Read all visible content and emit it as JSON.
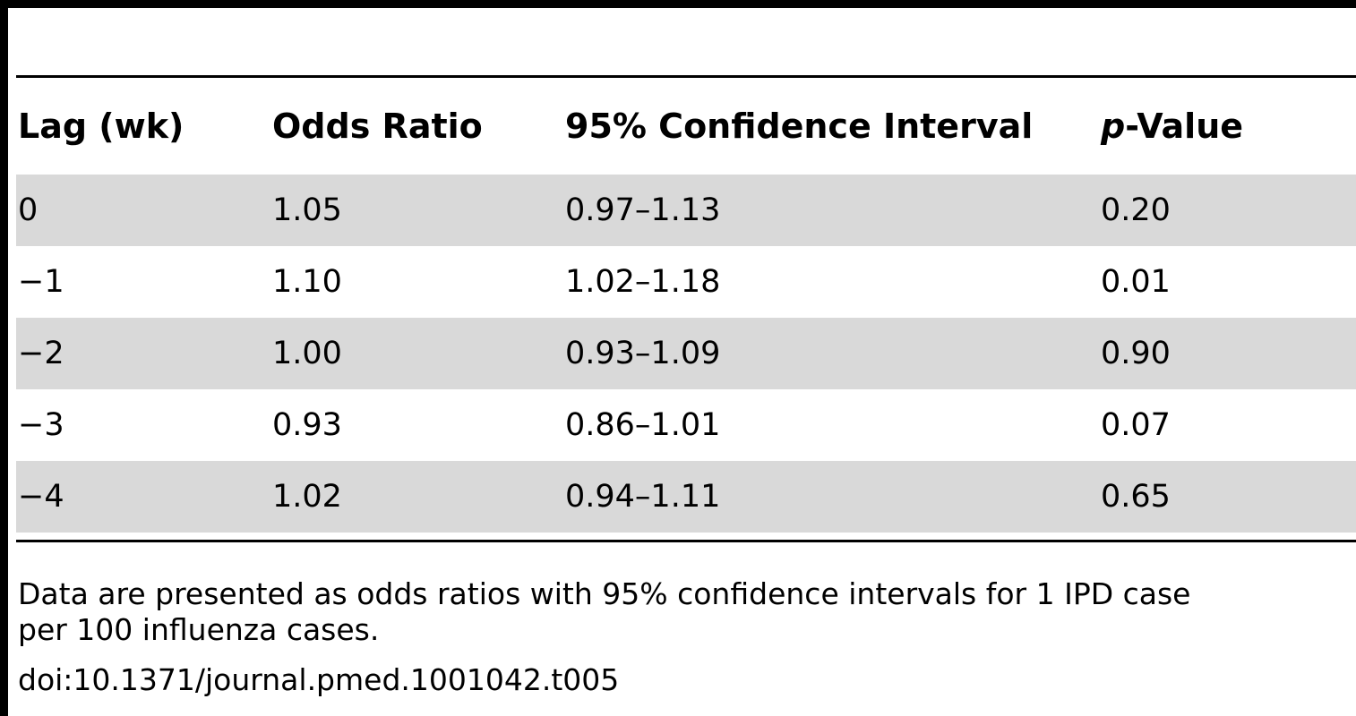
{
  "table": {
    "headers": {
      "lag": "Lag (wk)",
      "odds_ratio": "Odds Ratio",
      "ci": "95% Confidence Interval",
      "p_italic": "p",
      "p_rest": "-Value"
    },
    "rows": [
      {
        "lag": "0",
        "odds_ratio": "1.05",
        "ci": "0.97–1.13",
        "p": "0.20"
      },
      {
        "lag": "−1",
        "odds_ratio": "1.10",
        "ci": "1.02–1.18",
        "p": "0.01"
      },
      {
        "lag": "−2",
        "odds_ratio": "1.00",
        "ci": "0.93–1.09",
        "p": "0.90"
      },
      {
        "lag": "−3",
        "odds_ratio": "0.93",
        "ci": "0.86–1.01",
        "p": "0.07"
      },
      {
        "lag": "−4",
        "odds_ratio": "1.02",
        "ci": "0.94–1.11",
        "p": "0.65"
      }
    ]
  },
  "footnote": {
    "line1": "Data are presented as odds ratios with 95% confidence intervals for 1 IPD case",
    "line2": "per 100 influenza cases."
  },
  "doi": "doi:10.1371/journal.pmed.1001042.t005",
  "colors": {
    "shade": "#d9d9d9",
    "rule": "#000000"
  }
}
